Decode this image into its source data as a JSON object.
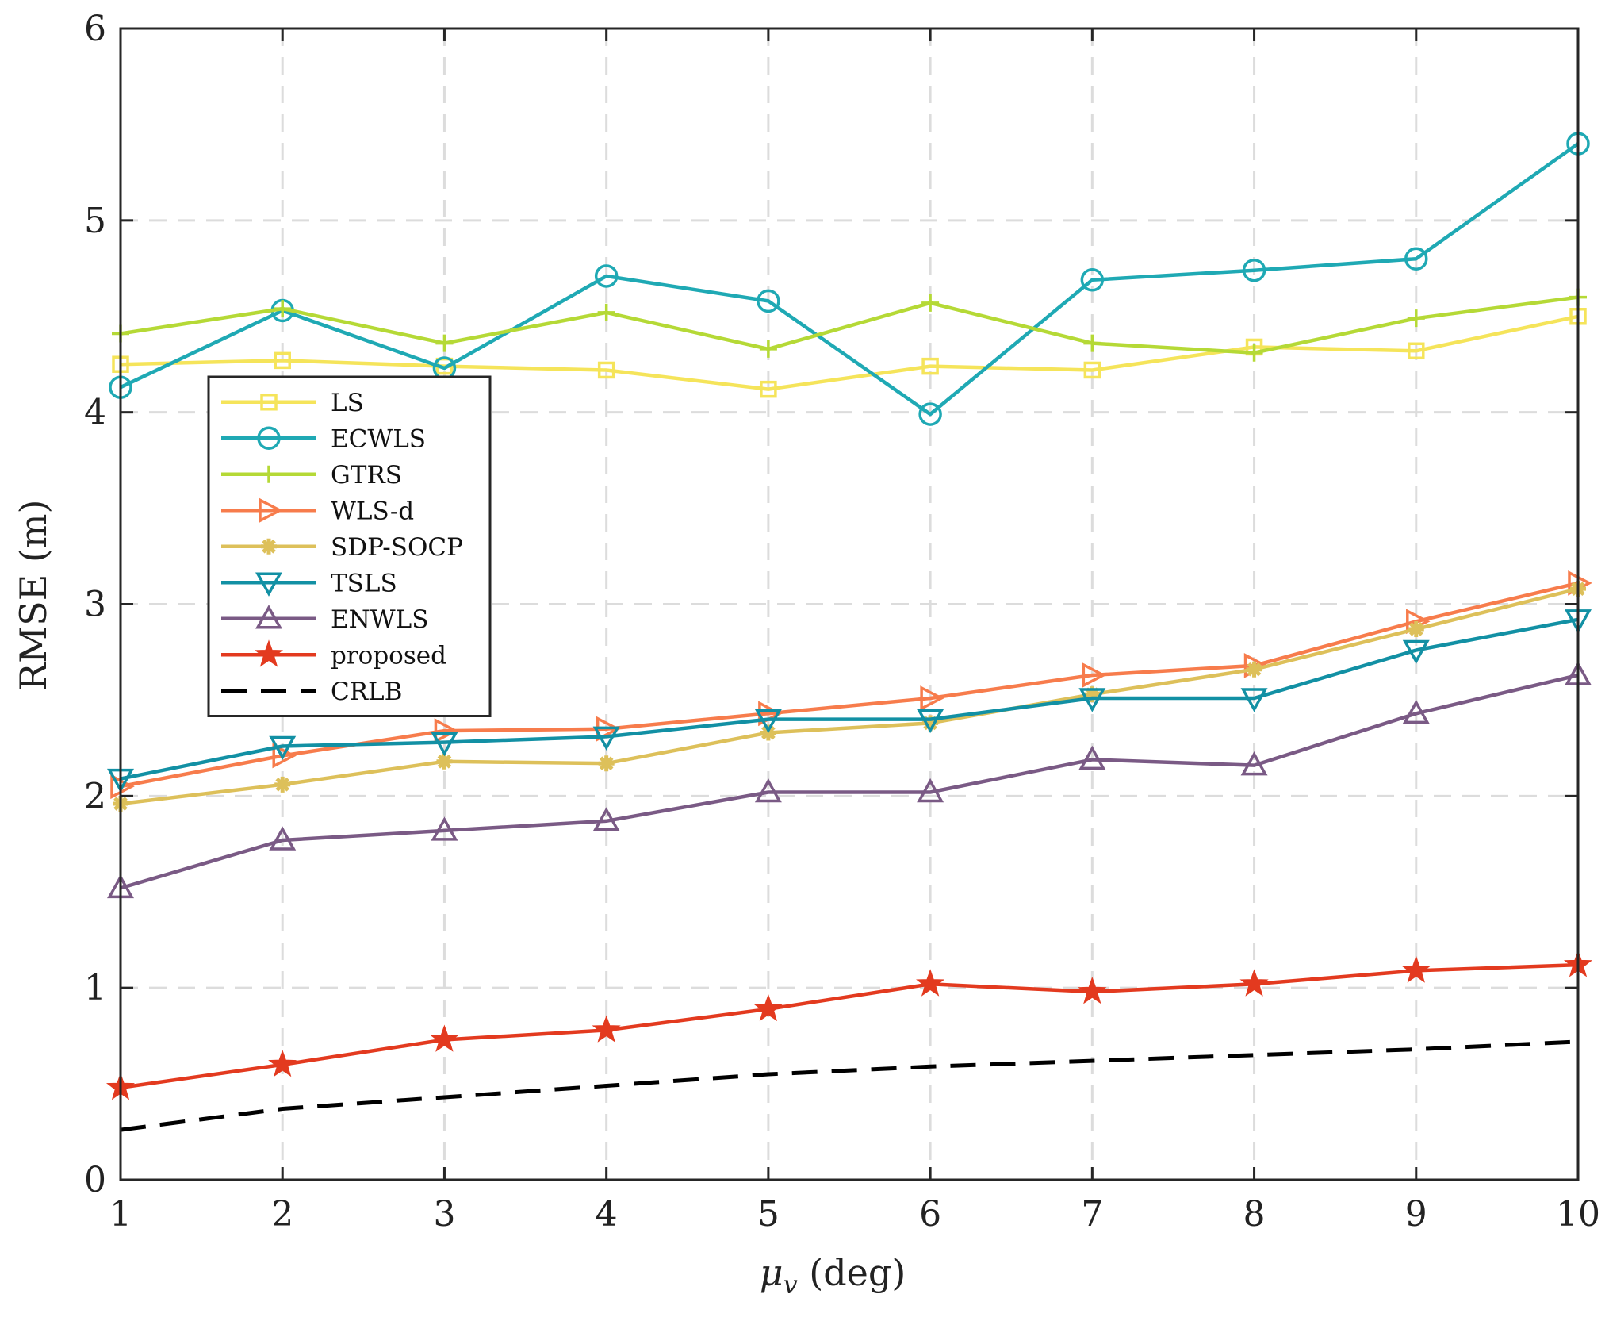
{
  "chart_data": {
    "type": "line",
    "title": "",
    "xlabel": "μ",
    "xlabel_sub": "v",
    "xlabel_unit": " (deg)",
    "ylabel": "RMSE (m)",
    "x": [
      1,
      2,
      3,
      4,
      5,
      6,
      7,
      8,
      9,
      10
    ],
    "xlim": [
      1,
      10
    ],
    "ylim": [
      0,
      6
    ],
    "xticks": [
      1,
      2,
      3,
      4,
      5,
      6,
      7,
      8,
      9,
      10
    ],
    "yticks": [
      0,
      1,
      2,
      3,
      4,
      5,
      6
    ],
    "grid": true,
    "legend_position": "center-left",
    "series": [
      {
        "name": "LS",
        "color": "#f5e45a",
        "marker": "square",
        "dash": false,
        "values": [
          4.25,
          4.27,
          4.24,
          4.22,
          4.12,
          4.24,
          4.22,
          4.34,
          4.32,
          4.5
        ]
      },
      {
        "name": "ECWLS",
        "color": "#1fa9b4",
        "marker": "circle",
        "dash": false,
        "values": [
          4.13,
          4.53,
          4.23,
          4.71,
          4.58,
          3.99,
          4.69,
          4.74,
          4.8,
          5.4
        ]
      },
      {
        "name": "GTRS",
        "color": "#b5d936",
        "marker": "plus",
        "dash": false,
        "values": [
          4.41,
          4.54,
          4.36,
          4.52,
          4.33,
          4.57,
          4.36,
          4.31,
          4.49,
          4.6
        ]
      },
      {
        "name": "WLS-d",
        "color": "#f77c4c",
        "marker": "triangle-right",
        "dash": false,
        "values": [
          2.05,
          2.21,
          2.34,
          2.35,
          2.43,
          2.51,
          2.63,
          2.68,
          2.91,
          3.11
        ]
      },
      {
        "name": "SDP-SOCP",
        "color": "#ddc05a",
        "marker": "asterisk",
        "dash": false,
        "values": [
          1.96,
          2.06,
          2.18,
          2.17,
          2.33,
          2.38,
          2.53,
          2.66,
          2.87,
          3.08
        ]
      },
      {
        "name": "TSLS",
        "color": "#1290a4",
        "marker": "triangle-down",
        "dash": false,
        "values": [
          2.09,
          2.26,
          2.28,
          2.31,
          2.4,
          2.4,
          2.51,
          2.51,
          2.76,
          2.92
        ]
      },
      {
        "name": "ENWLS",
        "color": "#7a5a85",
        "marker": "triangle-up",
        "dash": false,
        "values": [
          1.52,
          1.77,
          1.82,
          1.87,
          2.02,
          2.02,
          2.19,
          2.16,
          2.43,
          2.63
        ]
      },
      {
        "name": "proposed",
        "color": "#e33a1f",
        "marker": "star",
        "dash": false,
        "values": [
          0.48,
          0.6,
          0.73,
          0.78,
          0.89,
          1.02,
          0.98,
          1.02,
          1.09,
          1.12
        ]
      },
      {
        "name": "CRLB",
        "color": "#000000",
        "marker": "none",
        "dash": true,
        "values": [
          0.26,
          0.37,
          0.43,
          0.49,
          0.55,
          0.59,
          0.62,
          0.65,
          0.68,
          0.72
        ]
      }
    ]
  }
}
